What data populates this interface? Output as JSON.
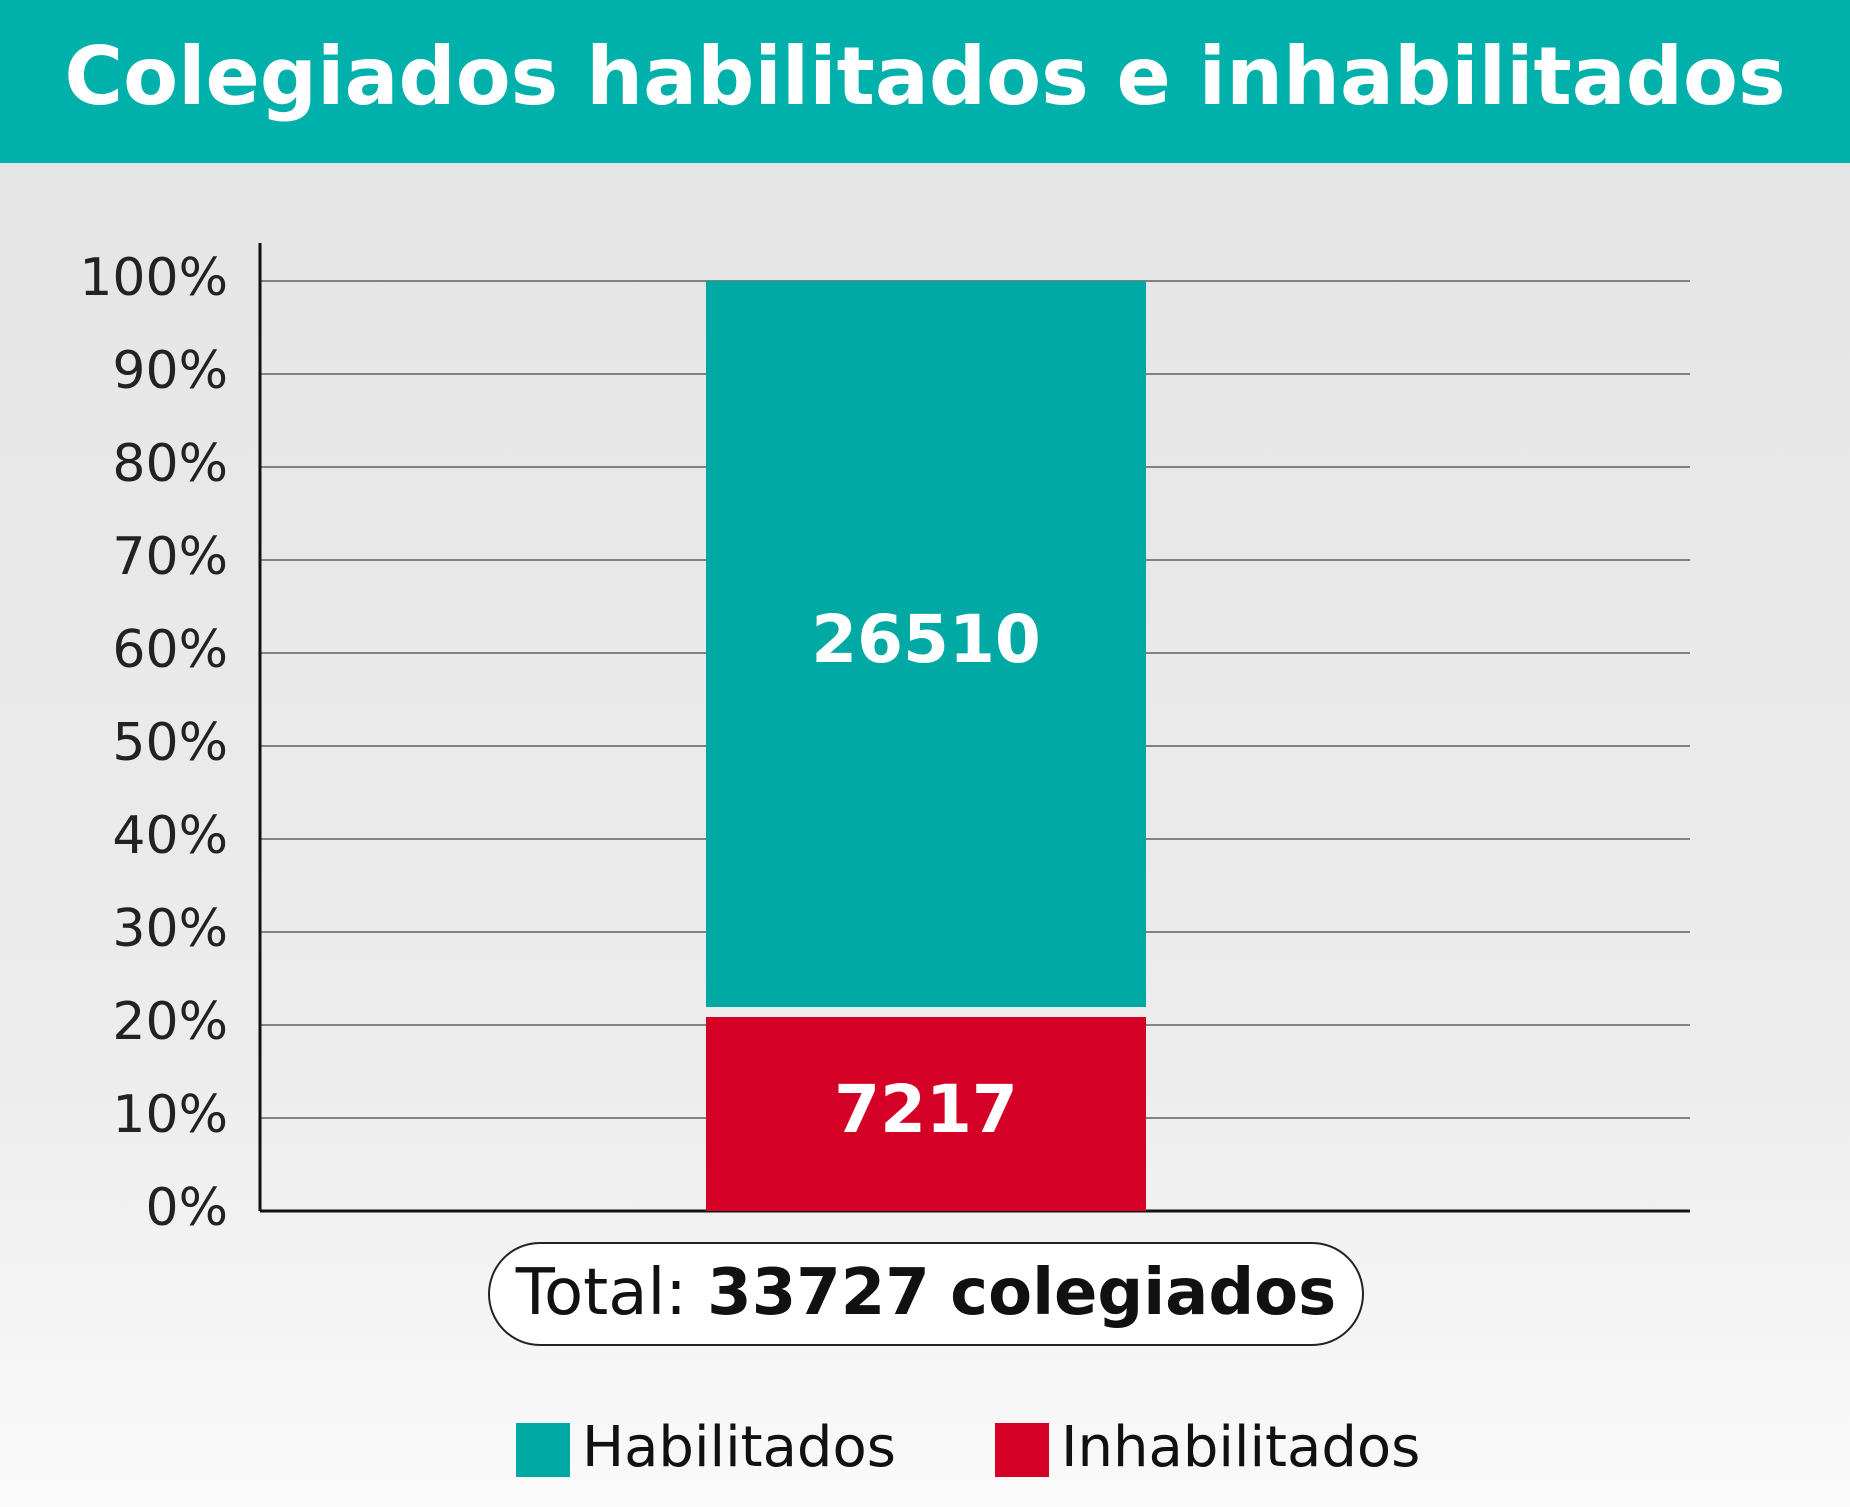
{
  "chart_data": {
    "type": "stacked_percent_bar",
    "title": "Colegiados habilitados e inhabilitados",
    "series": [
      {
        "name": "Inhabilitados",
        "color": "#d50025",
        "values": [
          7217
        ]
      },
      {
        "name": "Habilitados",
        "color": "#00a9a3",
        "values": [
          26510
        ]
      }
    ],
    "ylim": [
      0,
      100
    ],
    "yticks": [
      {
        "value": 0,
        "label": "0%"
      },
      {
        "value": 10,
        "label": "10%"
      },
      {
        "value": 20,
        "label": "20%"
      },
      {
        "value": 30,
        "label": "30%"
      },
      {
        "value": 40,
        "label": "40%"
      },
      {
        "value": 50,
        "label": "50%"
      },
      {
        "value": 60,
        "label": "60%"
      },
      {
        "value": 70,
        "label": "70%"
      },
      {
        "value": 80,
        "label": "80%"
      },
      {
        "value": 90,
        "label": "90%"
      },
      {
        "value": 100,
        "label": "100%"
      }
    ],
    "grid": true,
    "total_prefix": "Total:",
    "total": 33727,
    "total_suffix": "colegiados",
    "legend_order": [
      1,
      0
    ]
  }
}
